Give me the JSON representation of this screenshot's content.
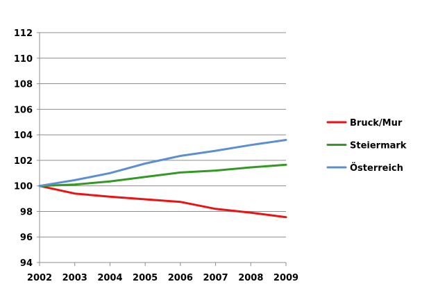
{
  "chart_data": {
    "type": "line",
    "title": "",
    "xlabel": "",
    "ylabel": "",
    "x": [
      "2002",
      "2003",
      "2004",
      "2005",
      "2006",
      "2007",
      "2008",
      "2009"
    ],
    "ylim": [
      94,
      112
    ],
    "yticks": [
      "94",
      "96",
      "98",
      "100",
      "102",
      "104",
      "106",
      "108",
      "110",
      "112"
    ],
    "grid": true,
    "legend_position": "right",
    "series": [
      {
        "name": "Bruck/Mur",
        "color": "#ee1111",
        "values": [
          100,
          99.4,
          99.15,
          98.95,
          98.75,
          98.2,
          97.9,
          97.55
        ]
      },
      {
        "name": "Steiermark",
        "color": "#339922",
        "values": [
          100,
          100.1,
          100.35,
          100.7,
          101.05,
          101.2,
          101.45,
          101.65
        ]
      },
      {
        "name": "Österreich",
        "color": "#5b8fd0",
        "values": [
          100,
          100.45,
          101.0,
          101.75,
          102.35,
          102.75,
          103.2,
          103.6
        ]
      }
    ]
  }
}
